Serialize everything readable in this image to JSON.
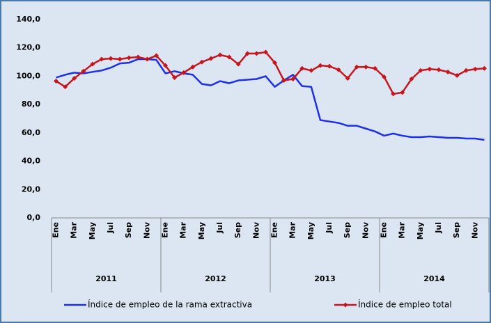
{
  "chart_data": {
    "type": "line",
    "categories": [
      "Ene",
      null,
      "Mar",
      null,
      "May",
      null,
      "Jul",
      null,
      "Sep",
      null,
      "Nov",
      null,
      "Ene",
      null,
      "Mar",
      null,
      "May",
      null,
      "Jul",
      null,
      "Sep",
      null,
      "Nov",
      null,
      "Ene",
      null,
      "Mar",
      null,
      "May",
      null,
      "Jul",
      null,
      "Sep",
      null,
      "Nov",
      null,
      "Ene",
      null,
      "Mar",
      null,
      "May",
      null,
      "Jul",
      null,
      "Sep",
      null,
      "Nov",
      null
    ],
    "groups": [
      "2011",
      "2012",
      "2013",
      "2014"
    ],
    "series": [
      {
        "name": "Índice de empleo de la rama extractiva",
        "color": "#1f2fe6",
        "marker": false,
        "values": [
          99,
          101,
          102.5,
          102,
          103,
          104,
          106,
          109,
          109.5,
          112,
          112,
          111.5,
          102,
          103.5,
          102,
          101,
          94.5,
          93.5,
          96.5,
          95,
          97,
          97.5,
          98,
          100,
          92.5,
          97,
          101,
          93,
          92.5,
          69,
          68,
          67,
          65,
          65,
          63,
          61,
          58,
          59.5,
          58,
          57,
          57,
          57.5,
          57,
          56.5,
          56.5,
          56,
          56,
          55
        ]
      },
      {
        "name": "Índice de empleo total",
        "color": "#c4161c",
        "marker": true,
        "values": [
          96.5,
          92.5,
          98.5,
          103.5,
          108.5,
          112,
          112.5,
          112,
          113,
          113.5,
          112,
          114.5,
          107.5,
          99,
          102.5,
          106.5,
          110,
          112.5,
          115,
          113.5,
          108.5,
          116,
          116,
          117,
          109.5,
          97,
          98,
          105.5,
          104,
          107.5,
          107,
          104.5,
          98.5,
          106.5,
          106.5,
          105.5,
          99.5,
          87.5,
          88.5,
          98,
          104,
          105,
          104.5,
          103,
          100.5,
          104,
          105,
          105.5
        ]
      }
    ],
    "ylim": [
      0,
      140
    ],
    "yticks": [
      {
        "value": 0,
        "label": "0,0"
      },
      {
        "value": 20,
        "label": "20,0"
      },
      {
        "value": 40,
        "label": "40,0"
      },
      {
        "value": 60,
        "label": "60,0"
      },
      {
        "value": 80,
        "label": "80,0"
      },
      {
        "value": 100,
        "label": "100,0"
      },
      {
        "value": 120,
        "label": "120,0"
      },
      {
        "value": 140,
        "label": "140,0"
      }
    ],
    "grid": false,
    "legend": "bottom"
  }
}
